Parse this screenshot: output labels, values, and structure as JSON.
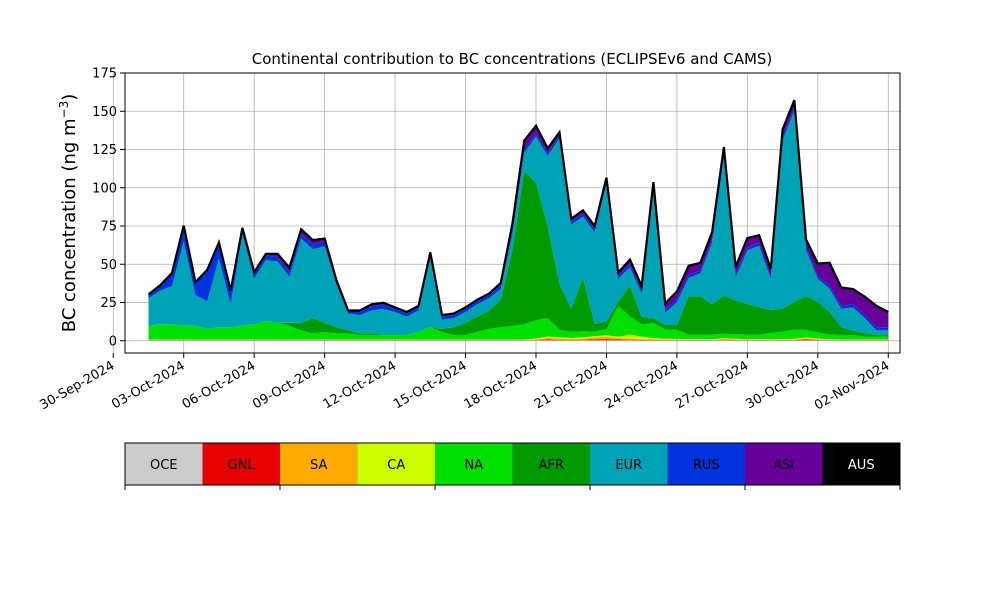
{
  "chart_data": {
    "type": "area",
    "title": "Continental contribution to BC concentrations (ECLIPSEv6 and CAMS)",
    "ylabel": "BC concentration (ng m",
    "ylabel_sup": "−3",
    "ylabel_close": ")",
    "xlabel": "",
    "ylim": [
      -8,
      175
    ],
    "yticks": [
      0,
      25,
      50,
      75,
      100,
      125,
      150,
      175
    ],
    "xlim": [
      "2024-09-30T12:00",
      "2024-11-02T12:00"
    ],
    "xticks": [
      "2024-09-30",
      "2024-10-03",
      "2024-10-06",
      "2024-10-09",
      "2024-10-12",
      "2024-10-15",
      "2024-10-18",
      "2024-10-21",
      "2024-10-24",
      "2024-10-27",
      "2024-10-30",
      "2024-11-02"
    ],
    "xtick_labels": [
      "30-Sep-2024",
      "03-Oct-2024",
      "06-Oct-2024",
      "09-Oct-2024",
      "12-Oct-2024",
      "15-Oct-2024",
      "18-Oct-2024",
      "21-Oct-2024",
      "24-Oct-2024",
      "27-Oct-2024",
      "30-Oct-2024",
      "02-Nov-2024"
    ],
    "grid": true,
    "legend": "colorbar-below",
    "x": [
      "2024-10-01T12:00",
      "2024-10-02T00:00",
      "2024-10-02T12:00",
      "2024-10-03T00:00",
      "2024-10-03T12:00",
      "2024-10-04T00:00",
      "2024-10-04T12:00",
      "2024-10-05T00:00",
      "2024-10-05T12:00",
      "2024-10-06T00:00",
      "2024-10-06T12:00",
      "2024-10-07T00:00",
      "2024-10-07T12:00",
      "2024-10-08T00:00",
      "2024-10-08T12:00",
      "2024-10-09T00:00",
      "2024-10-09T12:00",
      "2024-10-10T00:00",
      "2024-10-10T12:00",
      "2024-10-11T00:00",
      "2024-10-11T12:00",
      "2024-10-12T00:00",
      "2024-10-12T12:00",
      "2024-10-13T00:00",
      "2024-10-13T12:00",
      "2024-10-14T00:00",
      "2024-10-14T12:00",
      "2024-10-15T00:00",
      "2024-10-15T12:00",
      "2024-10-16T00:00",
      "2024-10-16T12:00",
      "2024-10-17T00:00",
      "2024-10-17T12:00",
      "2024-10-18T00:00",
      "2024-10-18T12:00",
      "2024-10-19T00:00",
      "2024-10-19T12:00",
      "2024-10-20T00:00",
      "2024-10-20T12:00",
      "2024-10-21T00:00",
      "2024-10-21T12:00",
      "2024-10-22T00:00",
      "2024-10-22T12:00",
      "2024-10-23T00:00",
      "2024-10-23T12:00",
      "2024-10-24T00:00",
      "2024-10-24T12:00",
      "2024-10-25T00:00",
      "2024-10-25T12:00",
      "2024-10-26T00:00",
      "2024-10-26T12:00",
      "2024-10-27T00:00",
      "2024-10-27T12:00",
      "2024-10-28T00:00",
      "2024-10-28T12:00",
      "2024-10-29T00:00",
      "2024-10-29T12:00",
      "2024-10-30T00:00",
      "2024-10-30T12:00",
      "2024-10-31T00:00",
      "2024-10-31T12:00",
      "2024-11-01T00:00",
      "2024-11-01T12:00",
      "2024-11-02T00:00"
    ],
    "series": [
      {
        "name": "OCE",
        "color": "#cccccc",
        "values": [
          0.3,
          0.3,
          0.3,
          0.3,
          0.3,
          0.3,
          0.3,
          0.3,
          0.3,
          0.3,
          0.3,
          0.3,
          0.3,
          0.3,
          0.3,
          0.3,
          0.3,
          0.3,
          0.3,
          0.3,
          0.3,
          0.3,
          0.3,
          0.3,
          0.3,
          0.3,
          0.3,
          0.3,
          0.3,
          0.3,
          0.3,
          0.3,
          0.3,
          0.3,
          0.3,
          0.3,
          0.3,
          0.3,
          0.3,
          0.3,
          0.3,
          0.3,
          0.3,
          0.3,
          0.3,
          0.3,
          0.3,
          0.3,
          0.3,
          0.3,
          0.3,
          0.3,
          0.3,
          0.3,
          0.3,
          0.3,
          0.3,
          0.3,
          0.3,
          0.3,
          0.3,
          0.3,
          0.3,
          0.3
        ]
      },
      {
        "name": "GNL",
        "color": "#e60000",
        "values": [
          0.2,
          0.2,
          0.2,
          0.2,
          0.2,
          0.2,
          0.2,
          0.2,
          0.2,
          0.2,
          0.2,
          0.2,
          0.2,
          0.2,
          0.2,
          0.2,
          0.2,
          0.2,
          0.2,
          0.2,
          0.2,
          0.2,
          0.2,
          0.2,
          0.2,
          0.2,
          0.2,
          0.2,
          0.2,
          0.2,
          0.2,
          0.2,
          0.2,
          0.3,
          0.5,
          0.4,
          0.3,
          0.4,
          0.6,
          0.8,
          0.5,
          0.4,
          0.3,
          0.3,
          0.3,
          0.3,
          0.2,
          0.2,
          0.2,
          0.4,
          0.3,
          0.2,
          0.2,
          0.2,
          0.2,
          0.3,
          0.5,
          0.3,
          0.2,
          0.2,
          0.2,
          0.2,
          0.2,
          0.2
        ]
      },
      {
        "name": "SA",
        "color": "#ffaa00",
        "values": [
          0.1,
          0.1,
          0.1,
          0.1,
          0.1,
          0.1,
          0.1,
          0.1,
          0.1,
          0.1,
          0.1,
          0.1,
          0.1,
          0.1,
          0.1,
          0.1,
          0.1,
          0.1,
          0.1,
          0.1,
          0.1,
          0.1,
          0.1,
          0.1,
          0.1,
          0.1,
          0.1,
          0.1,
          0.1,
          0.1,
          0.1,
          0.1,
          0.1,
          0.4,
          1.0,
          0.8,
          0.6,
          0.8,
          1.2,
          1.5,
          1.0,
          0.8,
          0.6,
          0.5,
          0.4,
          0.3,
          0.2,
          0.2,
          0.2,
          0.5,
          0.4,
          0.3,
          0.2,
          0.3,
          0.2,
          0.4,
          0.8,
          0.5,
          0.2,
          0.1,
          0.1,
          0.1,
          0.1,
          0.1
        ]
      },
      {
        "name": "CA",
        "color": "#ccff00",
        "values": [
          0.2,
          0.2,
          0.2,
          0.2,
          0.2,
          0.2,
          0.2,
          0.2,
          0.2,
          0.2,
          0.2,
          0.2,
          0.2,
          0.2,
          0.2,
          0.2,
          0.2,
          0.2,
          0.2,
          0.2,
          0.2,
          0.2,
          0.2,
          0.2,
          0.2,
          0.2,
          0.2,
          0.2,
          0.2,
          0.2,
          0.2,
          0.2,
          0.2,
          0.5,
          1.0,
          0.8,
          0.6,
          0.7,
          0.9,
          1.0,
          0.8,
          2.5,
          1.5,
          0.6,
          0.4,
          0.3,
          0.3,
          0.3,
          0.3,
          0.4,
          0.3,
          0.3,
          0.3,
          0.3,
          0.3,
          0.3,
          0.6,
          0.4,
          0.3,
          0.2,
          0.2,
          0.2,
          0.2,
          0.2
        ]
      },
      {
        "name": "NA",
        "color": "#00e000",
        "values": [
          9,
          10,
          10,
          9,
          9,
          7,
          8,
          8,
          9,
          10,
          12,
          11,
          9,
          6,
          4,
          5,
          4,
          4,
          3,
          3,
          3,
          3,
          3,
          5,
          8,
          5,
          3,
          3,
          5,
          7,
          8,
          9,
          10,
          12,
          12,
          5,
          4,
          4,
          3,
          4,
          20,
          12,
          8,
          10,
          6,
          6,
          3,
          3,
          3,
          3,
          3,
          3,
          3,
          4,
          5,
          6,
          5,
          4,
          3,
          3,
          3,
          2,
          2,
          2
        ]
      },
      {
        "name": "AFR",
        "color": "#009900",
        "values": [
          0,
          0,
          0,
          0,
          0,
          0,
          0,
          0,
          0,
          0,
          0,
          0,
          2,
          5,
          10,
          6,
          4,
          2,
          1,
          1,
          0,
          0,
          0,
          0,
          0,
          2,
          5,
          8,
          10,
          12,
          18,
          50,
          100,
          90,
          60,
          30,
          15,
          35,
          5,
          5,
          3,
          20,
          5,
          3,
          3,
          3,
          25,
          25,
          20,
          25,
          22,
          20,
          18,
          15,
          15,
          18,
          22,
          20,
          15,
          5,
          3,
          2,
          1,
          1
        ]
      },
      {
        "name": "EUR",
        "color": "#00a3b6",
        "values": [
          18,
          22,
          25,
          55,
          20,
          18,
          45,
          15,
          60,
          30,
          40,
          40,
          30,
          55,
          45,
          50,
          28,
          11,
          12,
          15,
          17,
          15,
          12,
          14,
          45,
          6,
          6,
          7,
          8,
          8,
          7,
          10,
          12,
          30,
          46,
          95,
          55,
          40,
          60,
          90,
          15,
          12,
          15,
          85,
          8,
          15,
          12,
          15,
          40,
          90,
          15,
          35,
          40,
          20,
          110,
          125,
          30,
          15,
          15,
          12,
          15,
          10,
          3,
          3
        ]
      },
      {
        "name": "RUS",
        "color": "#0033dd",
        "values": [
          2,
          3,
          8,
          10,
          8,
          20,
          10,
          8,
          3,
          3,
          3,
          3,
          3,
          3,
          3,
          3,
          2,
          1,
          2,
          3,
          3,
          2,
          2,
          2,
          3,
          2,
          2,
          2,
          2,
          2,
          2,
          2,
          2,
          2,
          2,
          2,
          2,
          2,
          2,
          2,
          2,
          2,
          2,
          2,
          2,
          2,
          2,
          2,
          2,
          2,
          2,
          2,
          2,
          2,
          2,
          2,
          2,
          2,
          2,
          2,
          2,
          2,
          2,
          2
        ]
      },
      {
        "name": "ASI",
        "color": "#660099",
        "values": [
          0.5,
          0.5,
          0.5,
          0.5,
          0.5,
          0.5,
          0.5,
          1,
          1,
          1,
          1,
          2,
          3,
          3,
          3,
          2,
          1,
          1,
          1,
          1,
          1,
          1,
          1,
          1,
          1,
          1,
          1,
          1,
          1,
          1,
          2,
          5,
          6,
          5,
          3,
          2,
          2,
          2,
          2,
          2,
          2,
          3,
          3,
          2,
          4,
          5,
          6,
          5,
          5,
          5,
          5,
          6,
          5,
          5,
          5,
          5,
          5,
          8,
          15,
          12,
          10,
          12,
          14,
          10
        ]
      },
      {
        "name": "AUS",
        "color": "#000000",
        "values": [
          0,
          0,
          0,
          0,
          0,
          0,
          0,
          0,
          0,
          0,
          0,
          0,
          0,
          0,
          0,
          0,
          0,
          0,
          0,
          0,
          0,
          0,
          0,
          0,
          0,
          0,
          0,
          0,
          0,
          0,
          0,
          0,
          0,
          0,
          0,
          0,
          0,
          0,
          0,
          0,
          0,
          0,
          0,
          0,
          0,
          0,
          0,
          0,
          0,
          0,
          0,
          0,
          0,
          0,
          0,
          0,
          0,
          0,
          0,
          0,
          0,
          0,
          0,
          0
        ]
      }
    ]
  }
}
